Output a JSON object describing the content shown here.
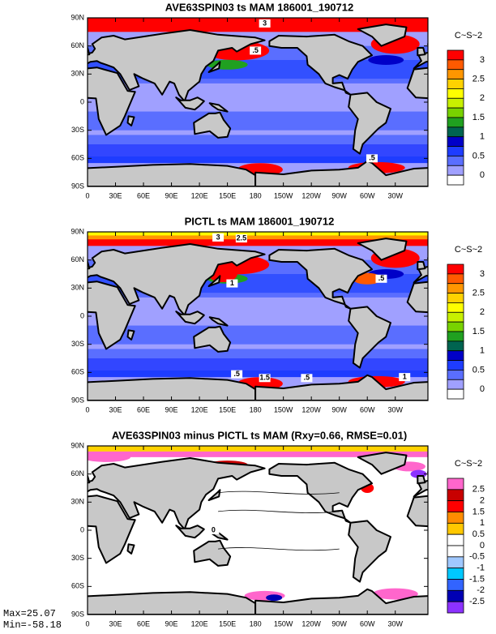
{
  "panels": [
    {
      "title": "AVE63SPIN03 ts MAM 186001_190712",
      "lat_ticks": [
        "90N",
        "60N",
        "30N",
        "0",
        "30S",
        "60S",
        "90S"
      ],
      "lon_ticks": [
        "0",
        "30E",
        "60E",
        "90E",
        "120E",
        "150E",
        "180",
        "150W",
        "120W",
        "90W",
        "60W",
        "30W"
      ],
      "colorbar": {
        "units": "C~S~2",
        "labels": [
          "3",
          "2.5",
          "2",
          "1.5",
          "1",
          "0.5",
          "0"
        ],
        "colors": [
          "#ff0000",
          "#ff5a00",
          "#ff9600",
          "#ffd200",
          "#ffff00",
          "#c8f000",
          "#78d200",
          "#20a020",
          "#006450",
          "#0000c8",
          "#1e3cff",
          "#5a6eff",
          "#a0a0ff",
          "#ffffff"
        ]
      },
      "contour_labels": [
        "3",
        ".5",
        ".5"
      ]
    },
    {
      "title": "PICTL ts MAM 186001_190712",
      "lat_ticks": [
        "90N",
        "60N",
        "30N",
        "0",
        "30S",
        "60S",
        "90S"
      ],
      "lon_ticks": [
        "0",
        "30E",
        "60E",
        "90E",
        "120E",
        "150E",
        "180",
        "150W",
        "120W",
        "90W",
        "60W",
        "30W"
      ],
      "colorbar": {
        "units": "C~S~2",
        "labels": [
          "3",
          "2.5",
          "2",
          "1.5",
          "1",
          "0.5",
          "0"
        ],
        "colors": [
          "#ff0000",
          "#ff5a00",
          "#ff9600",
          "#ffd200",
          "#ffff00",
          "#c8f000",
          "#78d200",
          "#20a020",
          "#006450",
          "#0000c8",
          "#1e3cff",
          "#5a6eff",
          "#a0a0ff",
          "#ffffff"
        ]
      },
      "contour_labels": [
        "3",
        "2.5",
        "1",
        ".5",
        "1.5",
        ".5",
        "1",
        ".5"
      ]
    },
    {
      "title": "AVE63SPIN03 minus PICTL ts MAM (Rxy=0.66, RMSE=0.01)",
      "lat_ticks": [
        "90N",
        "60N",
        "30N",
        "0",
        "30S",
        "60S",
        "90S"
      ],
      "lon_ticks": [
        "0",
        "30E",
        "60E",
        "90E",
        "120E",
        "150E",
        "180",
        "150W",
        "120W",
        "90W",
        "60W",
        "30W"
      ],
      "colorbar": {
        "units": "C~S~2",
        "labels": [
          "2.5",
          "2",
          "1.5",
          "1",
          "0.5",
          "0",
          "-0.5",
          "-1",
          "-1.5",
          "-2",
          "-2.5"
        ],
        "colors": [
          "#ff66cc",
          "#c80000",
          "#ff0000",
          "#ff8c00",
          "#ffc800",
          "#ffffff",
          "#ffffff",
          "#a0c8ff",
          "#00c8ff",
          "#3264ff",
          "#0000b4",
          "#8c32ff"
        ]
      },
      "contour_labels": [
        "0"
      ]
    }
  ],
  "stats": {
    "max": "Max=25.07",
    "min": "Min=-58.18"
  }
}
